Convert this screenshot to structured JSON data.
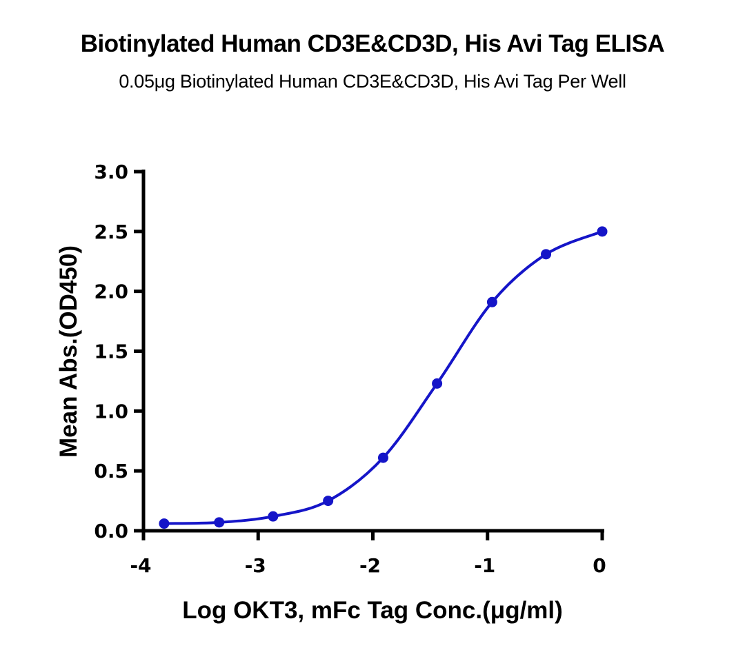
{
  "title": "Biotinylated Human CD3E&CD3D, His Avi Tag ELISA",
  "subtitle": "0.05μg Biotinylated Human CD3E&CD3D, His Avi Tag Per Well",
  "chart_data": {
    "type": "line",
    "title": "Biotinylated Human CD3E&CD3D, His Avi Tag ELISA",
    "subtitle": "0.05μg Biotinylated Human CD3E&CD3D, His Avi Tag Per Well",
    "xlabel": "Log OKT3, mFc Tag Conc.(μg/ml)",
    "ylabel": "Mean Abs.(OD450)",
    "xlim": [
      -4,
      0
    ],
    "ylim": [
      0,
      3.0
    ],
    "x_ticks": [
      "-4",
      "-3",
      "-2",
      "-1",
      "0"
    ],
    "y_ticks": [
      "0.0",
      "0.5",
      "1.0",
      "1.5",
      "2.0",
      "2.5",
      "3.0"
    ],
    "grid": false,
    "legend": null,
    "series": [
      {
        "name": "OKT3, mFc Tag",
        "color": "#1515c8",
        "marker": "circle",
        "fit": "4PL sigmoidal",
        "x": [
          -3.82,
          -3.34,
          -2.87,
          -2.39,
          -1.91,
          -1.44,
          -0.96,
          -0.49,
          0.0
        ],
        "values": [
          0.06,
          0.07,
          0.12,
          0.25,
          0.61,
          1.23,
          1.91,
          2.31,
          2.5
        ]
      }
    ]
  }
}
